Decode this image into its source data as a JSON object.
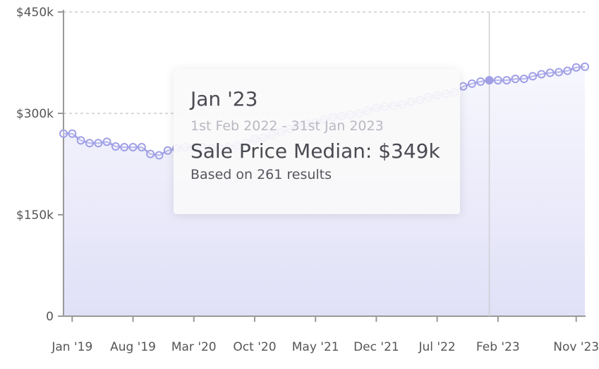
{
  "chart_data": {
    "type": "area",
    "y_ticks": [
      "$450k",
      "$300k",
      "$150k",
      "0"
    ],
    "y_tick_values": [
      450,
      300,
      150,
      0
    ],
    "ylim": [
      0,
      450
    ],
    "x_tick_labels": [
      "Jan '19",
      "Aug '19",
      "Mar '20",
      "Oct '20",
      "May '21",
      "Dec '21",
      "Jul '22",
      "Feb '23",
      "Nov '23"
    ],
    "x_tick_months": [
      "2019-01",
      "2019-08",
      "2020-03",
      "2020-10",
      "2021-05",
      "2021-12",
      "2022-07",
      "2023-02",
      "2023-11"
    ],
    "x_start": "2018-12",
    "x_end": "2023-12",
    "grid": true,
    "series": [
      {
        "color": "#9f9fe6",
        "x": [
          "2018-12",
          "2019-01",
          "2019-02",
          "2019-03",
          "2019-04",
          "2019-05",
          "2019-06",
          "2019-07",
          "2019-08",
          "2019-09",
          "2019-10",
          "2019-11",
          "2019-12",
          "2020-01",
          "2020-02",
          "2020-03",
          "2020-04",
          "2020-05",
          "2020-06",
          "2020-07",
          "2020-08",
          "2020-09",
          "2020-10",
          "2020-11",
          "2020-12",
          "2021-01",
          "2021-02",
          "2021-03",
          "2021-04",
          "2021-05",
          "2021-06",
          "2021-07",
          "2021-08",
          "2021-09",
          "2021-10",
          "2021-11",
          "2021-12",
          "2022-01",
          "2022-02",
          "2022-03",
          "2022-04",
          "2022-05",
          "2022-06",
          "2022-07",
          "2022-08",
          "2022-09",
          "2022-10",
          "2022-11",
          "2022-12",
          "2023-01",
          "2023-02",
          "2023-03",
          "2023-04",
          "2023-05",
          "2023-06",
          "2023-07",
          "2023-08",
          "2023-09",
          "2023-10",
          "2023-11",
          "2023-12"
        ],
        "values": [
          270,
          270,
          260,
          256,
          256,
          258,
          251,
          250,
          250,
          250,
          240,
          238,
          245,
          248,
          250,
          250,
          250,
          248,
          248,
          250,
          252,
          256,
          262,
          264,
          268,
          272,
          277,
          282,
          285,
          287,
          291,
          294,
          296,
          298,
          300,
          304,
          308,
          310,
          311,
          313,
          317,
          320,
          324,
          327,
          329,
          331,
          340,
          344,
          347,
          349,
          349,
          349,
          351,
          351,
          355,
          358,
          360,
          361,
          363,
          368,
          369
        ]
      }
    ],
    "highlight": {
      "x": "2023-01",
      "value": 349
    },
    "tooltip": {
      "title": "Jan '23",
      "range": "1st Feb 2022 - 31st Jan 2023",
      "value_text": "Sale Price Median: $349k",
      "note": "Based on 261 results"
    }
  }
}
